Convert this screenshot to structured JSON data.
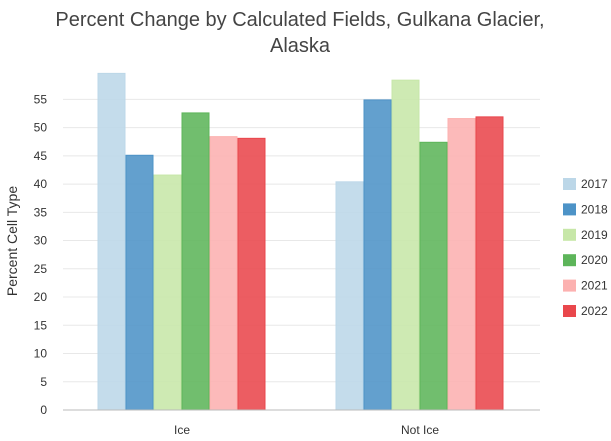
{
  "chart_data": {
    "type": "bar",
    "title_lines": [
      "Percent Change by Calculated Fields, Gulkana Glacier,",
      "Alaska"
    ],
    "xlabel": "",
    "ylabel": "Percent Cell Type",
    "categories": [
      "Ice",
      "Not Ice"
    ],
    "ylim": [
      0,
      60
    ],
    "yticks": [
      0,
      5,
      10,
      15,
      20,
      25,
      30,
      35,
      40,
      45,
      50,
      55
    ],
    "grid": true,
    "legend_position": "right",
    "series": [
      {
        "name": "2017",
        "color": "#bcd7e8",
        "values": [
          59.6,
          40.4
        ]
      },
      {
        "name": "2018",
        "color": "#4d93c7",
        "values": [
          45.1,
          54.9
        ]
      },
      {
        "name": "2019",
        "color": "#c7e7a8",
        "values": [
          41.6,
          58.4
        ]
      },
      {
        "name": "2020",
        "color": "#5db55a",
        "values": [
          52.6,
          47.4
        ]
      },
      {
        "name": "2021",
        "color": "#fcb1b0",
        "values": [
          48.4,
          51.6
        ]
      },
      {
        "name": "2022",
        "color": "#e9474c",
        "values": [
          48.1,
          51.9
        ]
      }
    ]
  }
}
